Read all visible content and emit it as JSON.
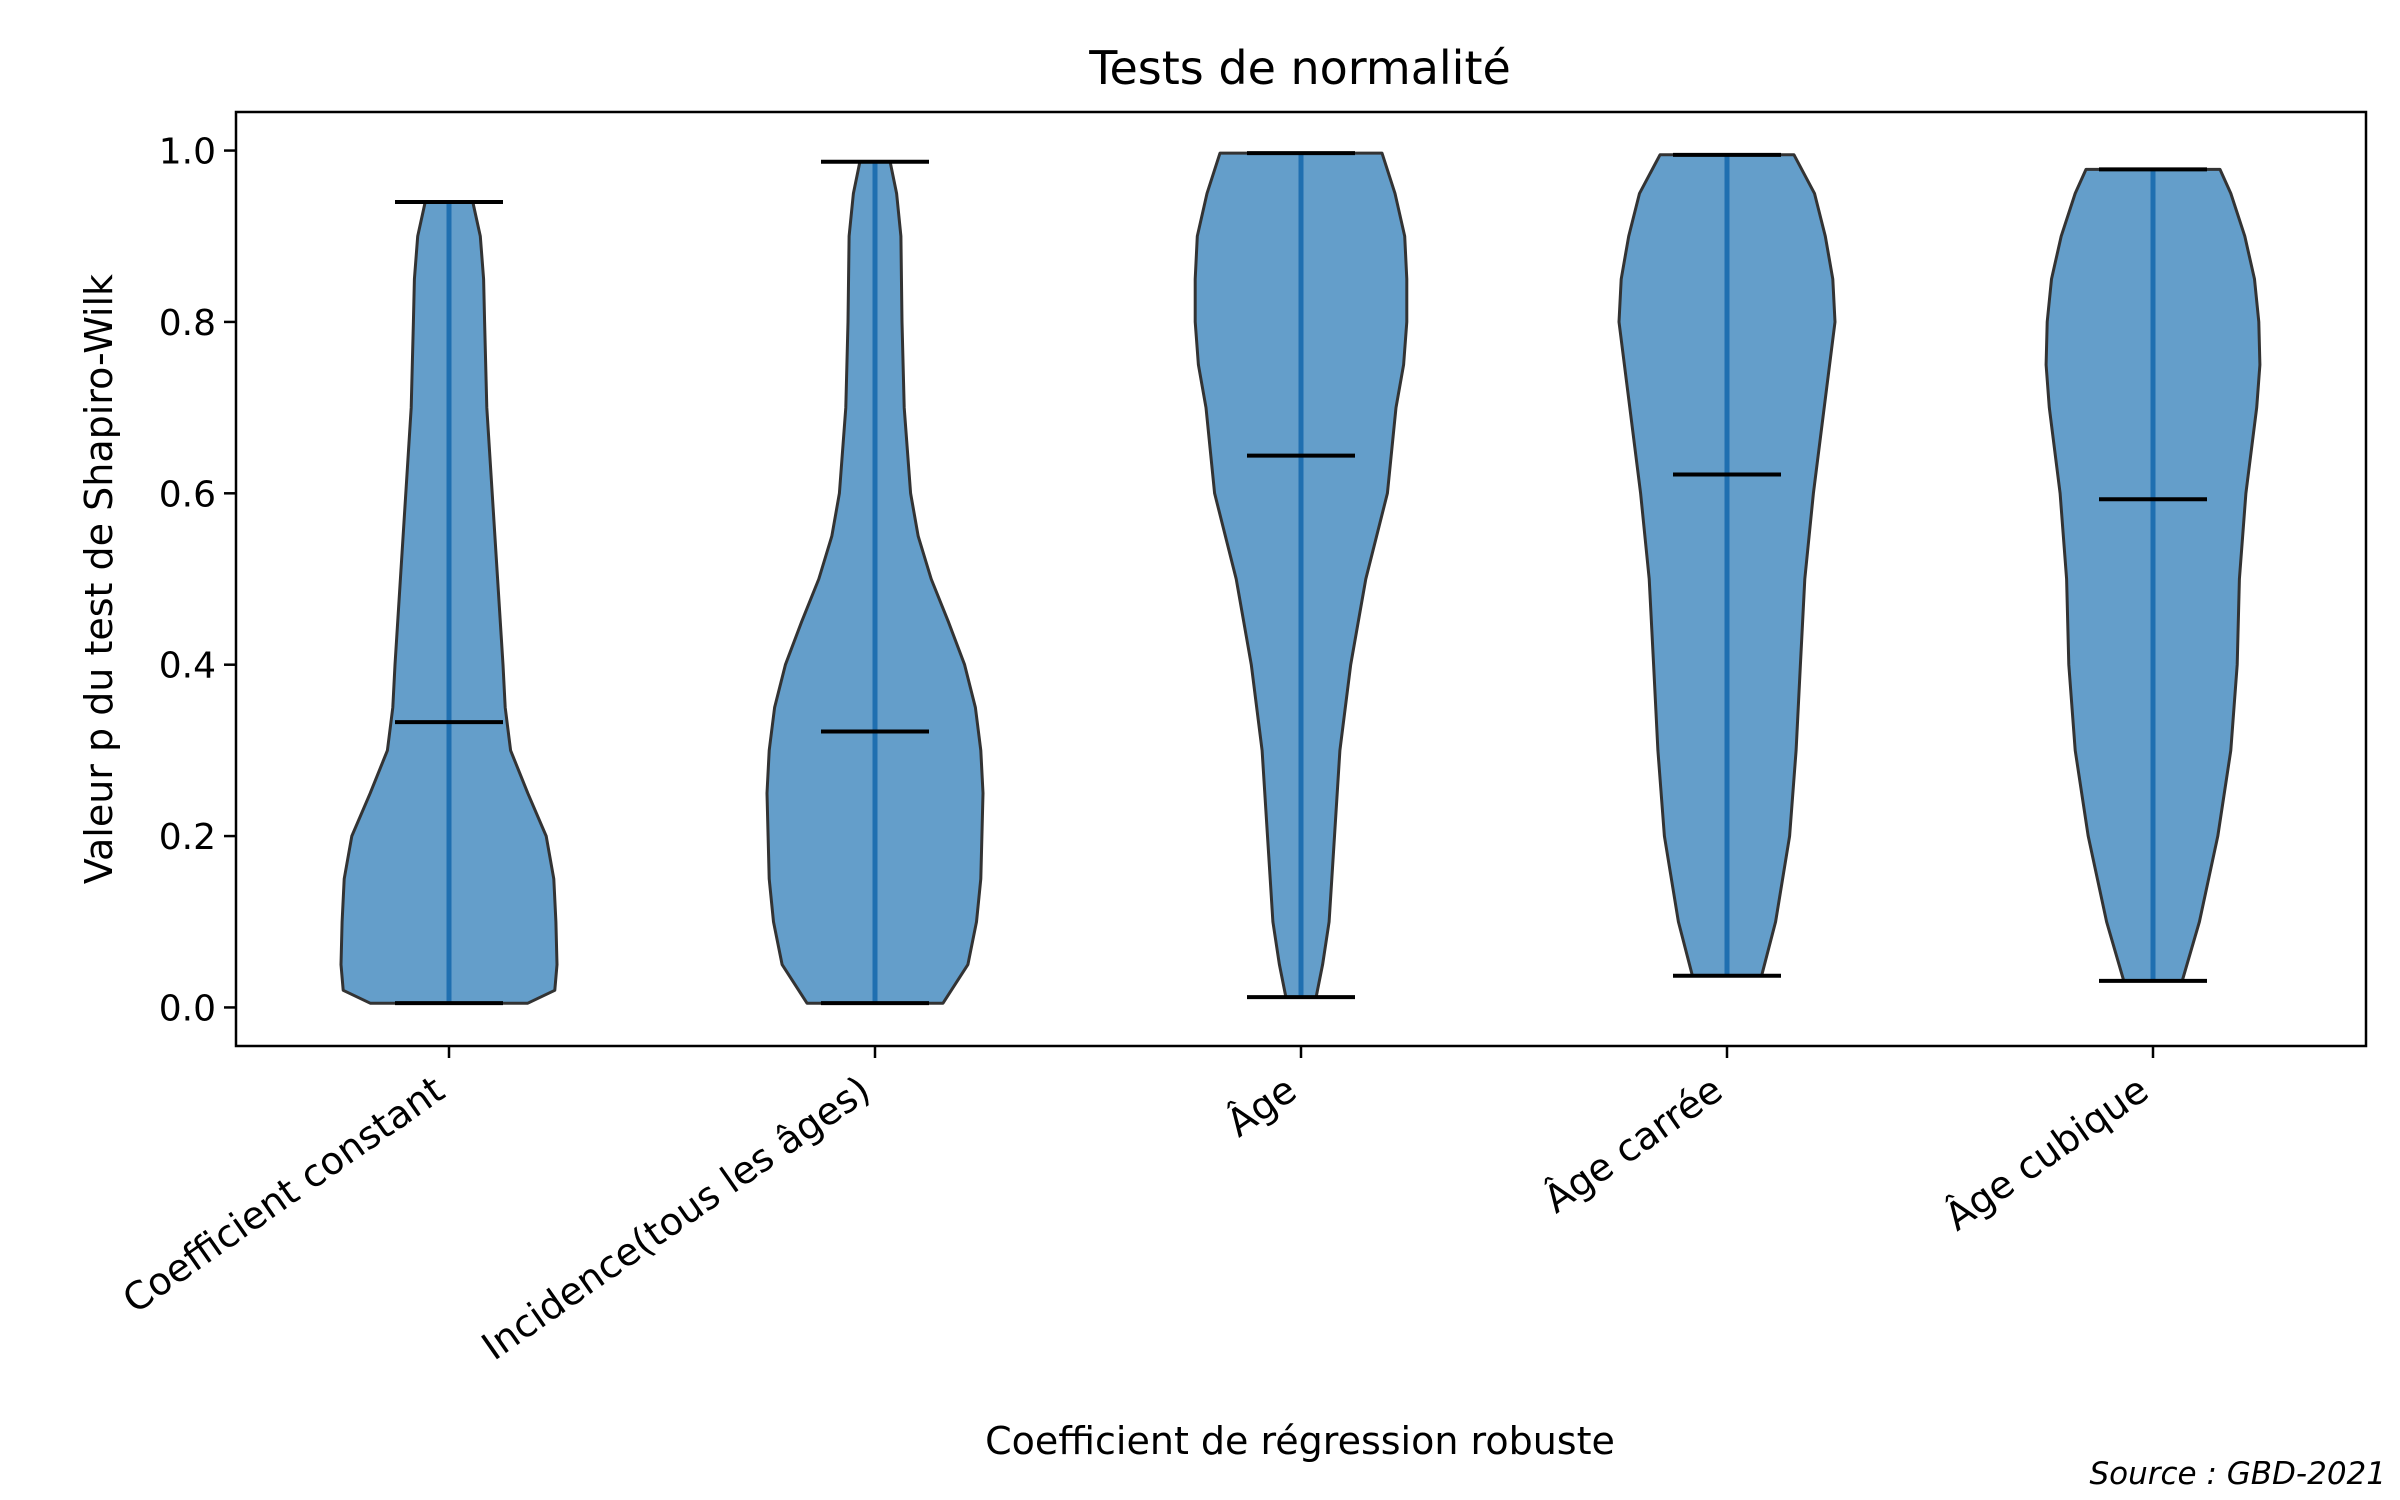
{
  "chart_data": {
    "type": "violin",
    "title": "Tests de normalité",
    "xlabel": "Coefficient de régression robuste",
    "ylabel": "Valeur p du test de Shapiro-Wilk",
    "ylim": [
      -0.045,
      1.045
    ],
    "yticks": [
      "0.0",
      "0.2",
      "0.4",
      "0.6",
      "0.8",
      "1.0"
    ],
    "grid": false,
    "source_note": "Source : GBD-2021",
    "colors": {
      "body": "#2878b5",
      "edge": "#333333",
      "median": "#000000",
      "stem": "#1f6fb0"
    },
    "categories": [
      "Coefficient constant",
      "Incidence(tous les âges)",
      "Âge",
      "Âge carrée",
      "Âge cubique"
    ],
    "violins": [
      {
        "name": "Coefficient constant",
        "min": 0.005,
        "max": 0.94,
        "median": 0.333,
        "profile": [
          [
            0.005,
            0.73
          ],
          [
            0.02,
            0.98
          ],
          [
            0.05,
            1.0
          ],
          [
            0.1,
            0.99
          ],
          [
            0.15,
            0.97
          ],
          [
            0.2,
            0.9
          ],
          [
            0.25,
            0.73
          ],
          [
            0.3,
            0.57
          ],
          [
            0.35,
            0.52
          ],
          [
            0.4,
            0.5
          ],
          [
            0.5,
            0.45
          ],
          [
            0.6,
            0.4
          ],
          [
            0.7,
            0.35
          ],
          [
            0.8,
            0.33
          ],
          [
            0.85,
            0.32
          ],
          [
            0.9,
            0.29
          ],
          [
            0.94,
            0.22
          ]
        ]
      },
      {
        "name": "Incidence(tous les âges)",
        "min": 0.005,
        "max": 0.987,
        "median": 0.322,
        "profile": [
          [
            0.005,
            0.63
          ],
          [
            0.05,
            0.86
          ],
          [
            0.1,
            0.94
          ],
          [
            0.15,
            0.98
          ],
          [
            0.2,
            0.99
          ],
          [
            0.25,
            1.0
          ],
          [
            0.3,
            0.98
          ],
          [
            0.35,
            0.93
          ],
          [
            0.4,
            0.83
          ],
          [
            0.45,
            0.68
          ],
          [
            0.5,
            0.52
          ],
          [
            0.55,
            0.4
          ],
          [
            0.6,
            0.33
          ],
          [
            0.7,
            0.27
          ],
          [
            0.8,
            0.25
          ],
          [
            0.9,
            0.24
          ],
          [
            0.95,
            0.2
          ],
          [
            0.987,
            0.14
          ]
        ]
      },
      {
        "name": "Âge",
        "min": 0.012,
        "max": 0.997,
        "median": 0.644,
        "profile": [
          [
            0.012,
            0.14
          ],
          [
            0.05,
            0.2
          ],
          [
            0.1,
            0.26
          ],
          [
            0.2,
            0.31
          ],
          [
            0.3,
            0.36
          ],
          [
            0.4,
            0.46
          ],
          [
            0.5,
            0.6
          ],
          [
            0.6,
            0.8
          ],
          [
            0.7,
            0.88
          ],
          [
            0.75,
            0.95
          ],
          [
            0.8,
            0.98
          ],
          [
            0.85,
            0.98
          ],
          [
            0.9,
            0.96
          ],
          [
            0.95,
            0.87
          ],
          [
            0.997,
            0.75
          ]
        ]
      },
      {
        "name": "Âge carrée",
        "min": 0.037,
        "max": 0.995,
        "median": 0.622,
        "profile": [
          [
            0.037,
            0.32
          ],
          [
            0.1,
            0.45
          ],
          [
            0.2,
            0.58
          ],
          [
            0.3,
            0.64
          ],
          [
            0.4,
            0.68
          ],
          [
            0.5,
            0.72
          ],
          [
            0.6,
            0.8
          ],
          [
            0.7,
            0.9
          ],
          [
            0.8,
            1.0
          ],
          [
            0.85,
            0.98
          ],
          [
            0.9,
            0.91
          ],
          [
            0.95,
            0.81
          ],
          [
            0.995,
            0.62
          ]
        ]
      },
      {
        "name": "Âge cubique",
        "min": 0.031,
        "max": 0.978,
        "median": 0.593,
        "profile": [
          [
            0.031,
            0.27
          ],
          [
            0.1,
            0.43
          ],
          [
            0.2,
            0.6
          ],
          [
            0.3,
            0.72
          ],
          [
            0.4,
            0.78
          ],
          [
            0.5,
            0.8
          ],
          [
            0.6,
            0.86
          ],
          [
            0.7,
            0.96
          ],
          [
            0.75,
            0.99
          ],
          [
            0.8,
            0.98
          ],
          [
            0.85,
            0.94
          ],
          [
            0.9,
            0.85
          ],
          [
            0.95,
            0.72
          ],
          [
            0.978,
            0.62
          ]
        ]
      }
    ]
  }
}
